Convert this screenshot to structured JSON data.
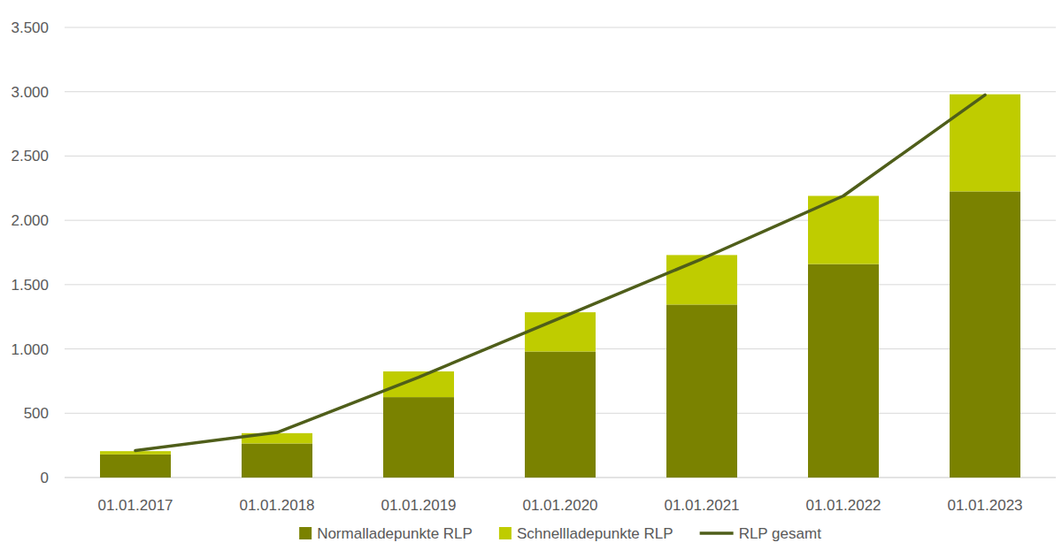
{
  "chart_data": {
    "type": "bar",
    "stacked": true,
    "grid": true,
    "legend": "bottom",
    "categories": [
      "01.01.2017",
      "01.01.2018",
      "01.01.2019",
      "01.01.2020",
      "01.01.2021",
      "01.01.2022",
      "01.01.2023"
    ],
    "series": [
      {
        "name": "Normalladepunkte RLP",
        "type": "bar",
        "color": "#7a8200",
        "values": [
          180,
          265,
          625,
          980,
          1345,
          1660,
          2225
        ]
      },
      {
        "name": "Schnellladepunkte RLP",
        "type": "bar",
        "color": "#bfcc00",
        "values": [
          25,
          80,
          200,
          305,
          385,
          530,
          755
        ]
      },
      {
        "name": "RLP gesamt",
        "type": "line",
        "color": "#4f5e1a",
        "values": [
          210,
          350,
          780,
          1240,
          1700,
          2190,
          2975
        ]
      }
    ],
    "ylim": [
      0,
      3500
    ],
    "yticks": [
      0,
      500,
      {
        "value": 1000,
        "label": "1.000"
      },
      {
        "value": 1500,
        "label": "1.500"
      },
      {
        "value": 2000,
        "label": "2.000"
      },
      {
        "value": 2500,
        "label": "2.500"
      },
      {
        "value": 3000,
        "label": "3.000"
      },
      {
        "value": 3500,
        "label": "3.500"
      }
    ]
  }
}
